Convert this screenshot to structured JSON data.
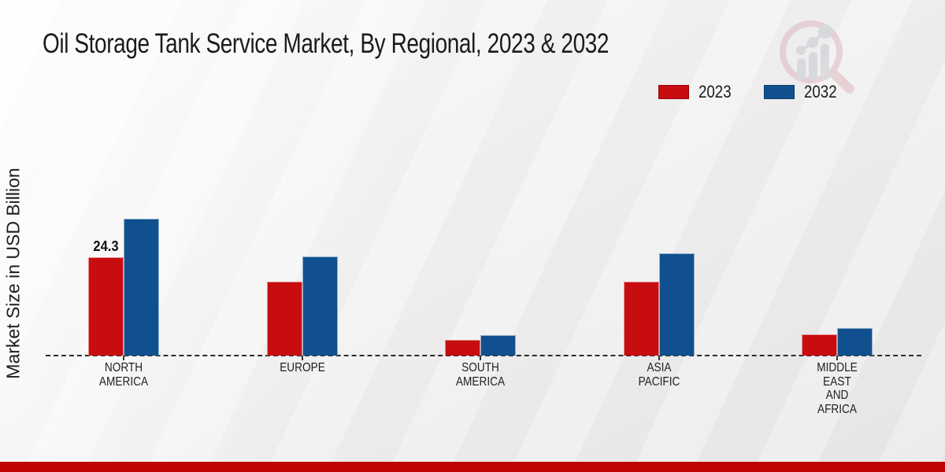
{
  "page": {
    "title": "Oil Storage Tank Service Market, By Regional, 2023 & 2032"
  },
  "axes": {
    "y_label": "Market Size in USD Billion"
  },
  "legend": {
    "items": [
      {
        "label": "2023",
        "color": "#c70d0f"
      },
      {
        "label": "2032",
        "color": "#11508e"
      }
    ]
  },
  "watermark": {
    "name": "market-research-magnifier-logo"
  },
  "footer": {
    "bar_color": "#bf0404"
  },
  "chart_data": {
    "type": "bar",
    "title": "Oil Storage Tank Service Market, By Regional, 2023 & 2032",
    "xlabel": "",
    "ylabel": "Market Size in USD Billion",
    "categories": [
      "NORTH AMERICA",
      "EUROPE",
      "SOUTH AMERICA",
      "ASIA PACIFIC",
      "MIDDLE EAST AND AFRICA"
    ],
    "category_lines": [
      [
        "NORTH",
        "AMERICA"
      ],
      [
        "EUROPE"
      ],
      [
        "SOUTH",
        "AMERICA"
      ],
      [
        "ASIA",
        "PACIFIC"
      ],
      [
        "MIDDLE",
        "EAST",
        "AND",
        "AFRICA"
      ]
    ],
    "series": [
      {
        "name": "2023",
        "color": "#c70d0f",
        "values": [
          24.3,
          18.3,
          3.9,
          18.3,
          5.3
        ]
      },
      {
        "name": "2032",
        "color": "#11508e",
        "values": [
          33.8,
          24.4,
          5.1,
          25.2,
          6.9
        ]
      }
    ],
    "value_labels": [
      {
        "category_index": 0,
        "series_index": 0,
        "text": "24.3"
      }
    ],
    "ylim": [
      0,
      40
    ],
    "grid": false,
    "axis_style": "dashed-baseline-only",
    "legend_position": "top-right",
    "units": "USD Billion"
  }
}
